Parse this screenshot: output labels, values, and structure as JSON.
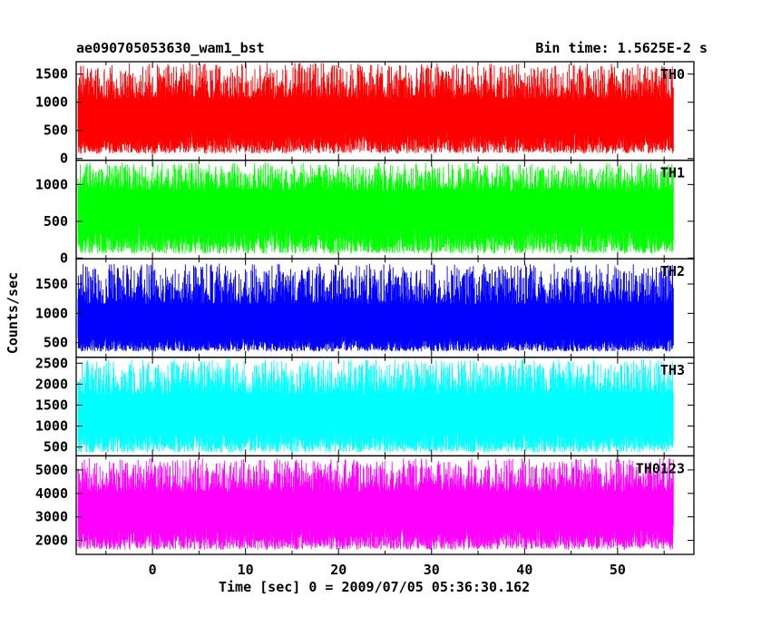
{
  "header": {
    "left_title": "ae090705053630_wam1_bst",
    "right_title": "Bin time: 1.5625E-2 s"
  },
  "chart_data": {
    "type": "line",
    "title": "ae090705053630_wam1_bst",
    "subtitle": "Bin time: 1.5625E-2 s",
    "xlabel": "Time [sec] 0 = 2009/07/05 05:36:30.162",
    "ylabel": "Counts/sec",
    "xlim": [
      -8.2,
      58.2
    ],
    "x_ticks": [
      0,
      10,
      20,
      30,
      40,
      50
    ],
    "x_tick_labels": [
      "0",
      "10",
      "20",
      "30",
      "40",
      "50"
    ],
    "x_range_data": [
      -8,
      56
    ],
    "grid": false,
    "panels": [
      {
        "name": "TH0",
        "color": "#ff0000",
        "ylim": [
          -30,
          1720
        ],
        "y_ticks": [
          0,
          500,
          1000,
          1500
        ],
        "y_tick_labels": [
          "0",
          "500",
          "1000",
          "1500"
        ],
        "mean": 720,
        "min": 90,
        "max": 1700
      },
      {
        "name": "TH1",
        "color": "#00ff00",
        "ylim": [
          -10,
          1330
        ],
        "y_ticks": [
          0,
          500,
          1000
        ],
        "y_tick_labels": [
          "0",
          "500",
          "1000"
        ],
        "mean": 700,
        "min": 60,
        "max": 1300
      },
      {
        "name": "TH2",
        "color": "#0000ff",
        "ylim": [
          250,
          1930
        ],
        "y_ticks": [
          500,
          1000,
          1500
        ],
        "y_tick_labels": [
          "500",
          "1000",
          "1500"
        ],
        "mean": 780,
        "min": 350,
        "max": 1850
      },
      {
        "name": "TH3",
        "color": "#00ffff",
        "ylim": [
          290,
          2640
        ],
        "y_ticks": [
          500,
          1000,
          1500,
          2000,
          2500
        ],
        "y_tick_labels": [
          "500",
          "1000",
          "1500",
          "2000",
          "2500"
        ],
        "mean": 1300,
        "min": 370,
        "max": 2600
      },
      {
        "name": "TH0123",
        "color": "#ff00ff",
        "ylim": [
          1400,
          5600
        ],
        "y_ticks": [
          2000,
          3000,
          4000,
          5000
        ],
        "y_tick_labels": [
          "2000",
          "3000",
          "4000",
          "5000"
        ],
        "mean": 3300,
        "min": 1600,
        "max": 5500
      }
    ]
  }
}
